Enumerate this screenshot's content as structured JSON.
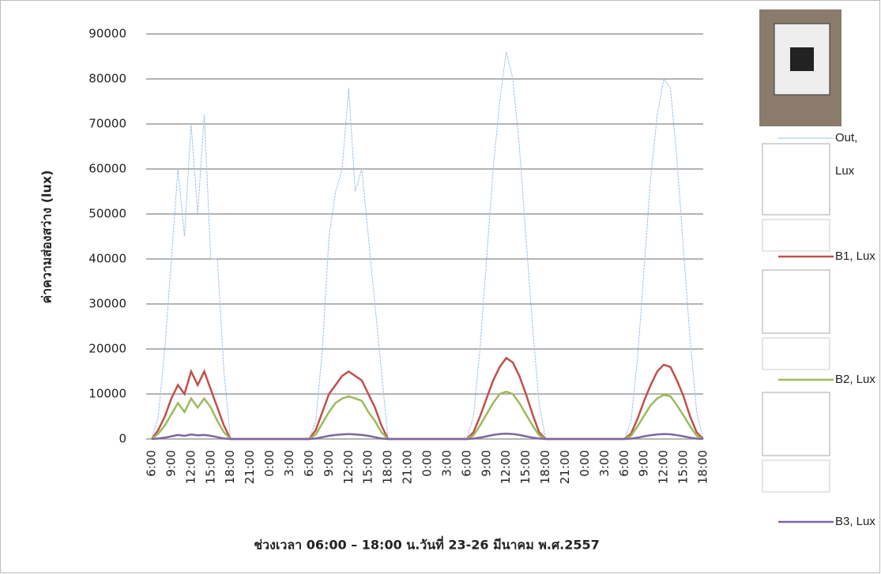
{
  "chart_data": {
    "type": "line",
    "y_label": "ค่าความส่องสว่าง (lux)",
    "x_label": "ช่วงเวลา 06:00 – 18:00 น.วันที่ 23-26 มีนาคม พ.ศ.2557",
    "categories": [
      "6:00",
      null,
      null,
      "9:00",
      null,
      null,
      "12:00",
      null,
      null,
      "15:00",
      null,
      null,
      "18:00",
      null,
      null,
      "21:00",
      null,
      null,
      "0:00",
      null,
      null,
      "3:00",
      null,
      null,
      "6:00",
      null,
      null,
      "9:00",
      null,
      null,
      "12:00",
      null,
      null,
      "15:00",
      null,
      null,
      "18:00",
      null,
      null,
      "21:00",
      null,
      null,
      "0:00",
      null,
      null,
      "3:00",
      null,
      null,
      "6:00",
      null,
      null,
      "9:00",
      null,
      null,
      "12:00",
      null,
      null,
      "15:00",
      null,
      null,
      "18:00",
      null,
      null,
      "21:00",
      null,
      null,
      "0:00",
      null,
      null,
      "3:00",
      null,
      null,
      "6:00",
      null,
      null,
      "9:00",
      null,
      null,
      "12:00",
      null,
      null,
      "15:00",
      null,
      null,
      "18:00"
    ],
    "series": [
      {
        "name": "Out, Lux",
        "color": "#9dc3e6",
        "values": [
          0,
          5000,
          20000,
          40000,
          60000,
          45000,
          70000,
          50000,
          72000,
          40000,
          40000,
          15000,
          0,
          0,
          0,
          0,
          0,
          0,
          0,
          0,
          0,
          0,
          0,
          0,
          0,
          4000,
          20000,
          45000,
          55000,
          60000,
          78000,
          55000,
          60000,
          45000,
          30000,
          15000,
          0,
          0,
          0,
          0,
          0,
          0,
          0,
          0,
          0,
          0,
          0,
          0,
          0,
          5000,
          20000,
          40000,
          60000,
          75000,
          86000,
          80000,
          65000,
          45000,
          25000,
          8000,
          0,
          0,
          0,
          0,
          0,
          0,
          0,
          0,
          0,
          0,
          0,
          0,
          0,
          4000,
          18000,
          38000,
          58000,
          72000,
          80000,
          78000,
          62000,
          42000,
          22000,
          6000,
          0
        ]
      },
      {
        "name": "B1, Lux",
        "color": "#c0504d",
        "values": [
          0,
          2000,
          5000,
          9000,
          12000,
          10000,
          15000,
          12000,
          15000,
          11000,
          7000,
          3000,
          0,
          0,
          0,
          0,
          0,
          0,
          0,
          0,
          0,
          0,
          0,
          0,
          0,
          2000,
          6000,
          10000,
          12000,
          14000,
          15000,
          14000,
          13000,
          10000,
          7000,
          3000,
          0,
          0,
          0,
          0,
          0,
          0,
          0,
          0,
          0,
          0,
          0,
          0,
          0,
          1500,
          5000,
          9000,
          13000,
          16000,
          18000,
          17000,
          14000,
          10000,
          5500,
          1500,
          0,
          0,
          0,
          0,
          0,
          0,
          0,
          0,
          0,
          0,
          0,
          0,
          0,
          1200,
          4500,
          8500,
          12000,
          15000,
          16500,
          16000,
          13000,
          9500,
          5000,
          1500,
          0
        ]
      },
      {
        "name": "B2, Lux",
        "color": "#9bbb59",
        "values": [
          0,
          1200,
          3000,
          5500,
          8000,
          6000,
          9000,
          7000,
          9000,
          7000,
          4000,
          1500,
          0,
          0,
          0,
          0,
          0,
          0,
          0,
          0,
          0,
          0,
          0,
          0,
          0,
          1000,
          3500,
          6000,
          8000,
          9000,
          9500,
          9000,
          8500,
          6000,
          4000,
          1500,
          0,
          0,
          0,
          0,
          0,
          0,
          0,
          0,
          0,
          0,
          0,
          0,
          0,
          800,
          3000,
          5500,
          8000,
          10000,
          10500,
          10000,
          8000,
          5500,
          3000,
          800,
          0,
          0,
          0,
          0,
          0,
          0,
          0,
          0,
          0,
          0,
          0,
          0,
          0,
          700,
          2800,
          5200,
          7500,
          9000,
          9800,
          9500,
          7500,
          5200,
          2800,
          700,
          0
        ]
      },
      {
        "name": "B3, Lux",
        "color": "#8064a2",
        "values": [
          0,
          100,
          300,
          600,
          900,
          700,
          1000,
          800,
          900,
          700,
          400,
          100,
          0,
          0,
          0,
          0,
          0,
          0,
          0,
          0,
          0,
          0,
          0,
          0,
          0,
          100,
          400,
          700,
          900,
          1000,
          1100,
          1000,
          900,
          700,
          400,
          100,
          0,
          0,
          0,
          0,
          0,
          0,
          0,
          0,
          0,
          0,
          0,
          0,
          0,
          100,
          300,
          600,
          900,
          1100,
          1200,
          1100,
          900,
          600,
          300,
          100,
          0,
          0,
          0,
          0,
          0,
          0,
          0,
          0,
          0,
          0,
          0,
          0,
          0,
          80,
          300,
          600,
          850,
          1000,
          1100,
          1050,
          850,
          600,
          300,
          80,
          0
        ]
      }
    ],
    "ylim": [
      0,
      90000
    ],
    "yticks": [
      0,
      10000,
      20000,
      30000,
      40000,
      50000,
      60000,
      70000,
      80000,
      90000
    ],
    "grid": true
  }
}
